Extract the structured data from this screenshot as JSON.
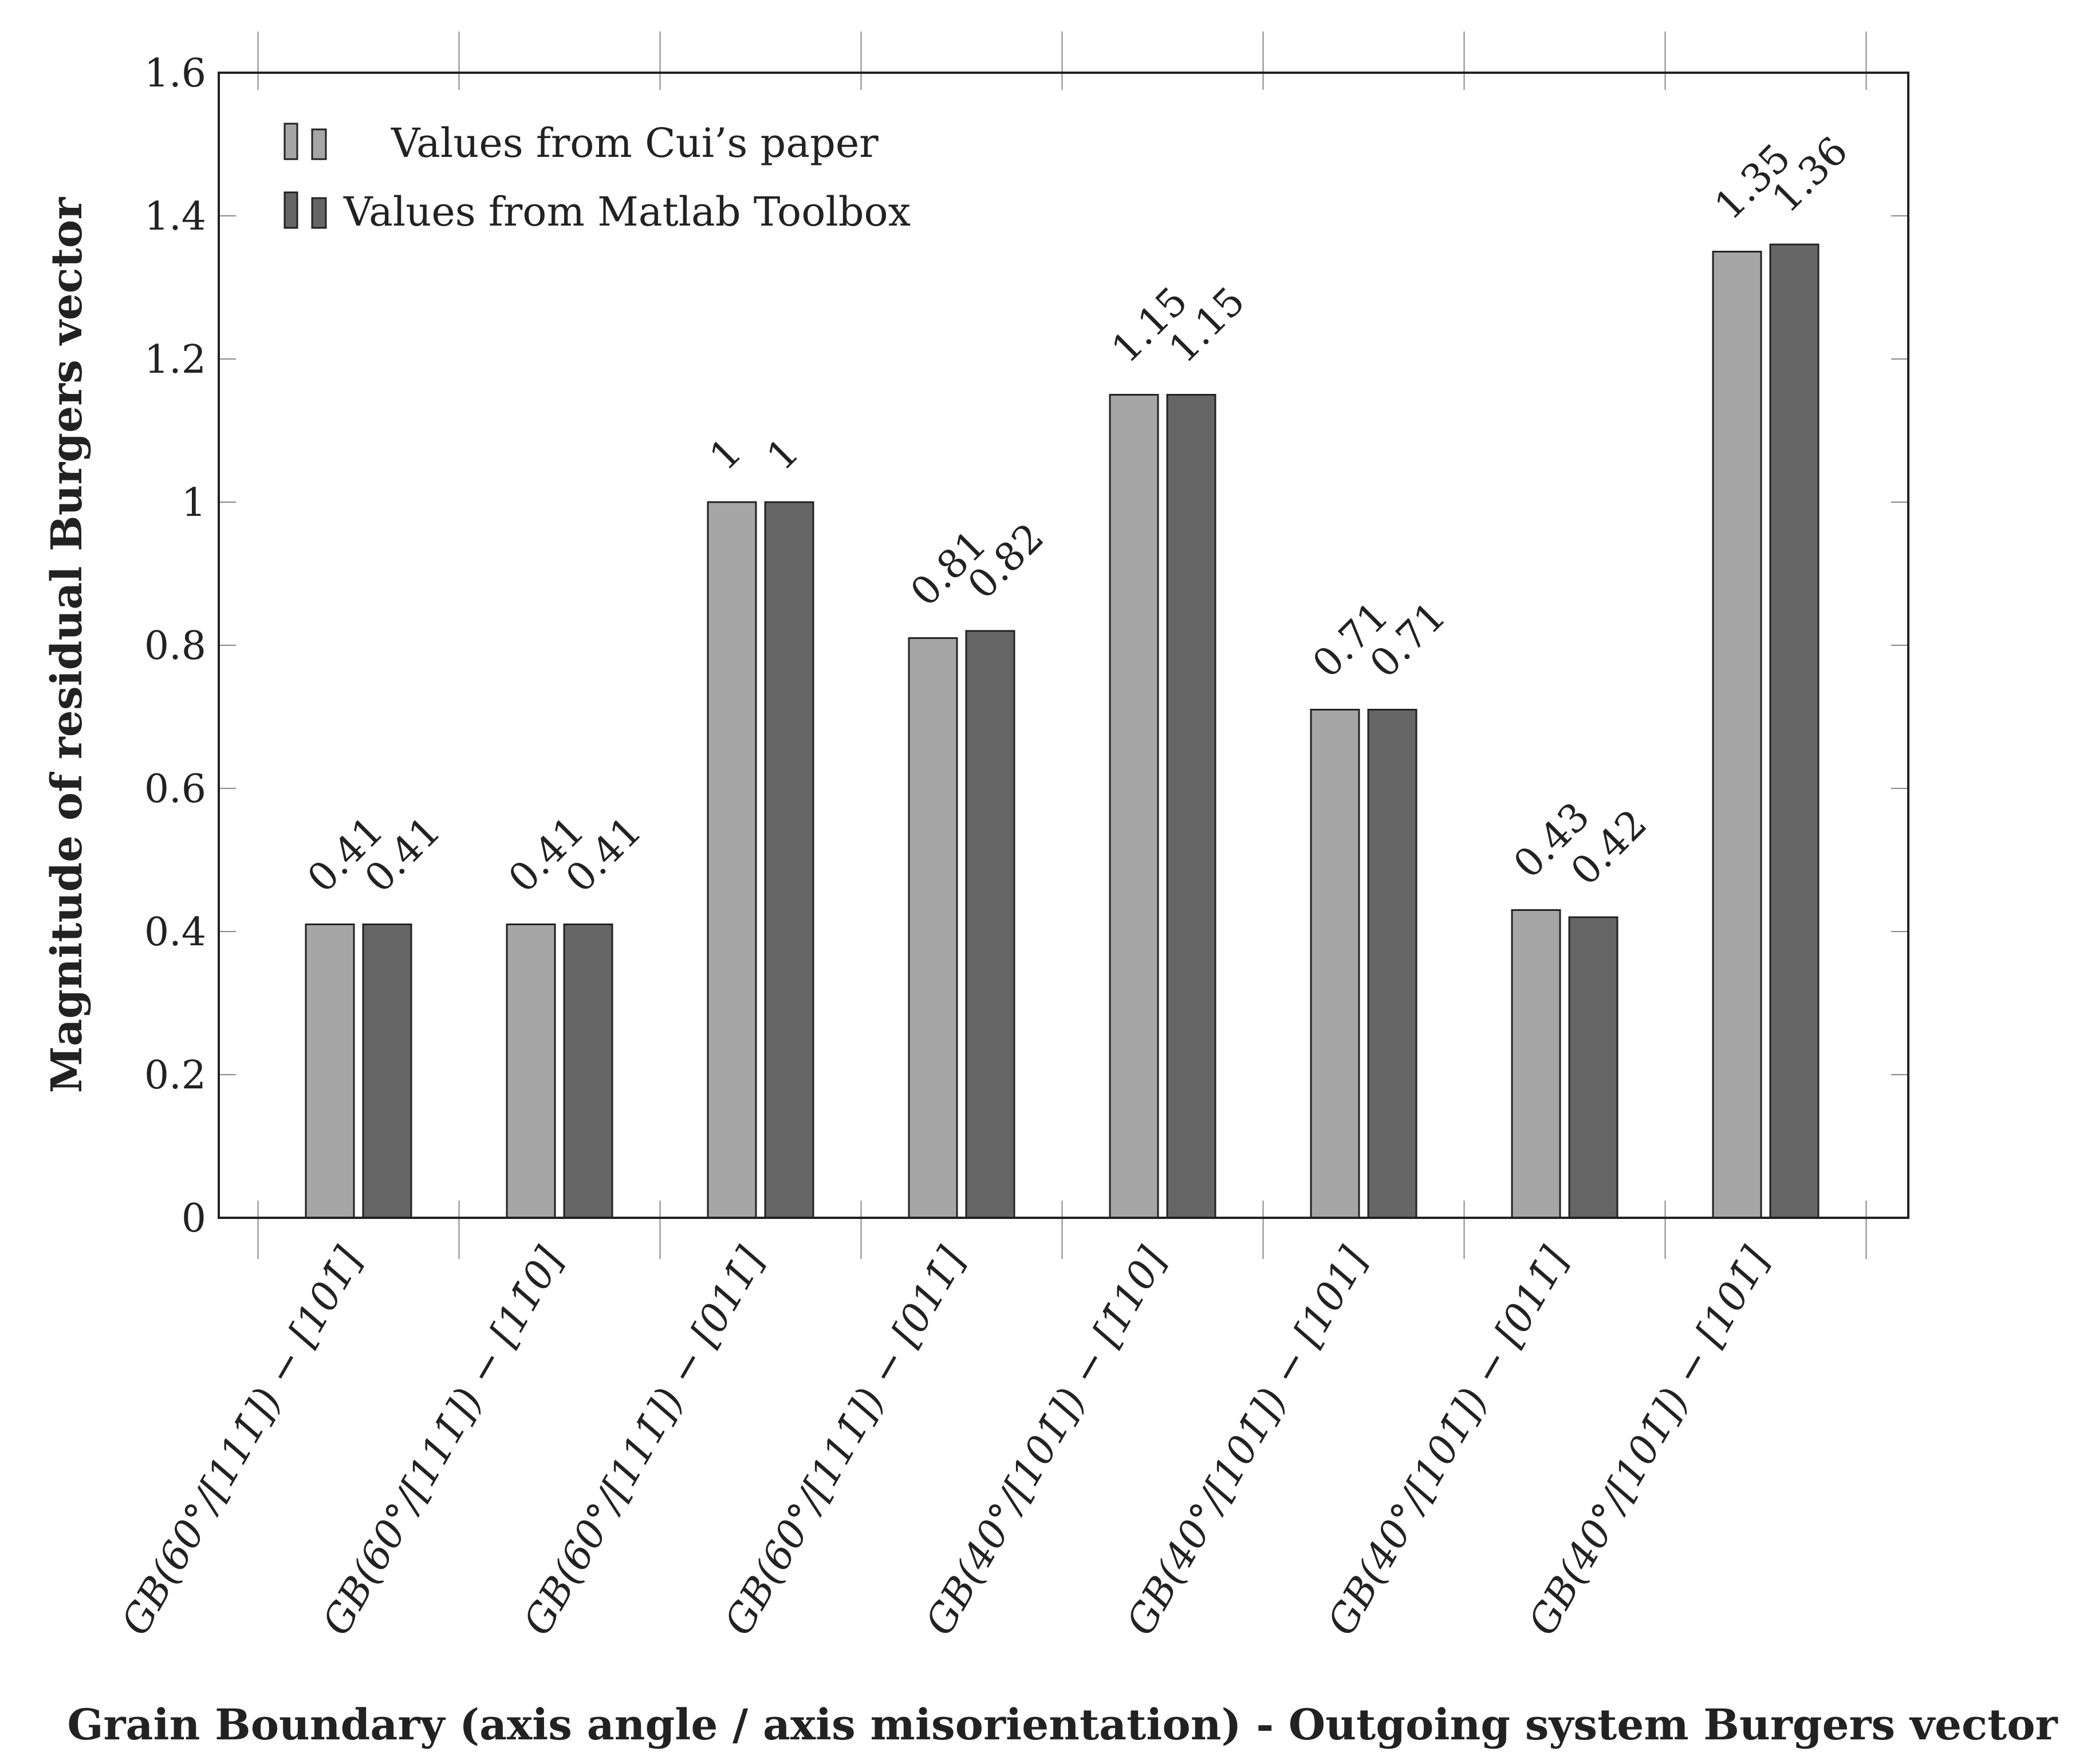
{
  "chart_data": {
    "type": "bar",
    "xlabel": "Grain Boundary (axis angle / axis misorientation) - Outgoing system Burgers vector",
    "ylabel": "Magnitude of residual Burgers vector",
    "ylim": [
      0,
      1.6
    ],
    "yticks": [
      "0",
      "0.2",
      "0.4",
      "0.6",
      "0.8",
      "1",
      "1.2",
      "1.4",
      "1.6"
    ],
    "ytick_values": [
      0,
      0.2,
      0.4,
      0.6,
      0.8,
      1.0,
      1.2,
      1.4,
      1.6
    ],
    "grid": false,
    "legend_position": "top-left",
    "categories": [
      "GB(60°/[111̄]) − [101̄]",
      "GB(60°/[111̄]) − [11̄0]",
      "GB(60°/[111̄]) − [011̄]",
      "GB(60°/[111̄]) − [011̄]",
      "GB(40°/[101̄]) − [1̄10]",
      "GB(40°/[101̄]) − [101]",
      "GB(40°/[101̄]) − [011̄]",
      "GB(40°/[101̄]) − [101̄]"
    ],
    "series": [
      {
        "name": "Values from Cui’s paper",
        "color": "#a6a6a6",
        "values": [
          0.41,
          0.41,
          1.0,
          0.81,
          1.15,
          0.71,
          0.43,
          1.35
        ],
        "labels": [
          "0.41",
          "0.41",
          "1",
          "0.81",
          "1.15",
          "0.71",
          "0.43",
          "1.35"
        ]
      },
      {
        "name": "Values from Matlab Toolbox",
        "color": "#666666",
        "values": [
          0.41,
          0.41,
          1.0,
          0.82,
          1.15,
          0.71,
          0.42,
          1.36
        ],
        "labels": [
          "0.41",
          "0.41",
          "1",
          "0.82",
          "1.15",
          "0.71",
          "0.42",
          "1.36"
        ]
      }
    ]
  }
}
